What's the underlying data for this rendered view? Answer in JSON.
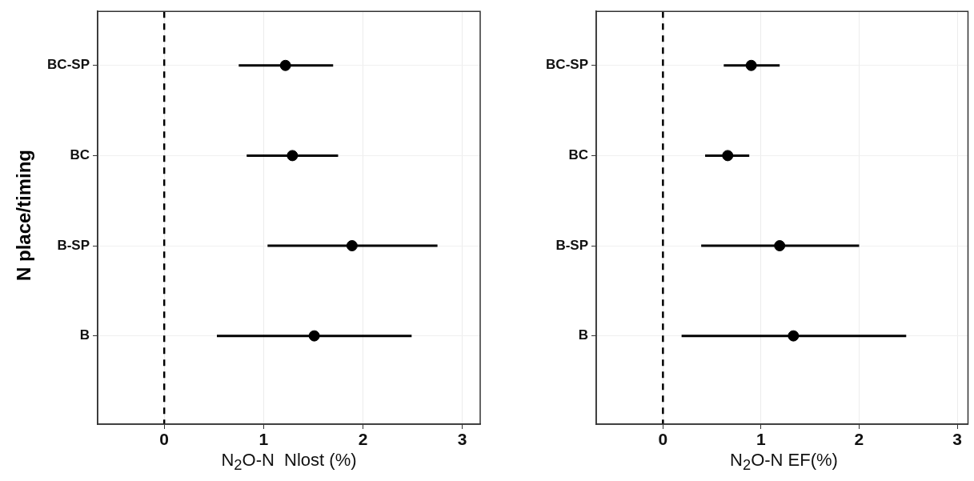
{
  "chart_data": [
    {
      "type": "scatter",
      "orientation": "horizontal",
      "categories": [
        "BC-SP",
        "BC",
        "B-SP",
        "B"
      ],
      "values": [
        1.22,
        1.29,
        1.89,
        1.51
      ],
      "errors": [
        [
          0.75,
          1.7
        ],
        [
          0.83,
          1.75
        ],
        [
          1.04,
          2.75
        ],
        [
          0.53,
          2.49
        ]
      ],
      "color": "#000000",
      "marker": "circle",
      "xlim": [
        -0.67,
        3.18
      ],
      "xticks": [
        0,
        1,
        2,
        3
      ],
      "xlabel": "N$_{2}$O-N  Nlost (%)",
      "ylabel": "N place/timing",
      "grid": true,
      "ref_lines": [
        {
          "axis": "x",
          "value": 0,
          "line_style": "dashed",
          "color": "#000000"
        }
      ]
    },
    {
      "type": "scatter",
      "orientation": "horizontal",
      "categories": [
        "BC-SP",
        "BC",
        "B-SP",
        "B"
      ],
      "values": [
        0.9,
        0.66,
        1.19,
        1.33
      ],
      "errors": [
        [
          0.62,
          1.19
        ],
        [
          0.43,
          0.88
        ],
        [
          0.39,
          2.0
        ],
        [
          0.19,
          2.48
        ]
      ],
      "color": "#000000",
      "marker": "circle",
      "xlim": [
        -0.68,
        3.11
      ],
      "xticks": [
        0,
        1,
        2,
        3
      ],
      "xlabel": "N$_{2}$O-N EF(%)",
      "grid": true,
      "ref_lines": [
        {
          "axis": "x",
          "value": 0,
          "line_style": "dashed",
          "color": "#000000"
        }
      ]
    }
  ]
}
